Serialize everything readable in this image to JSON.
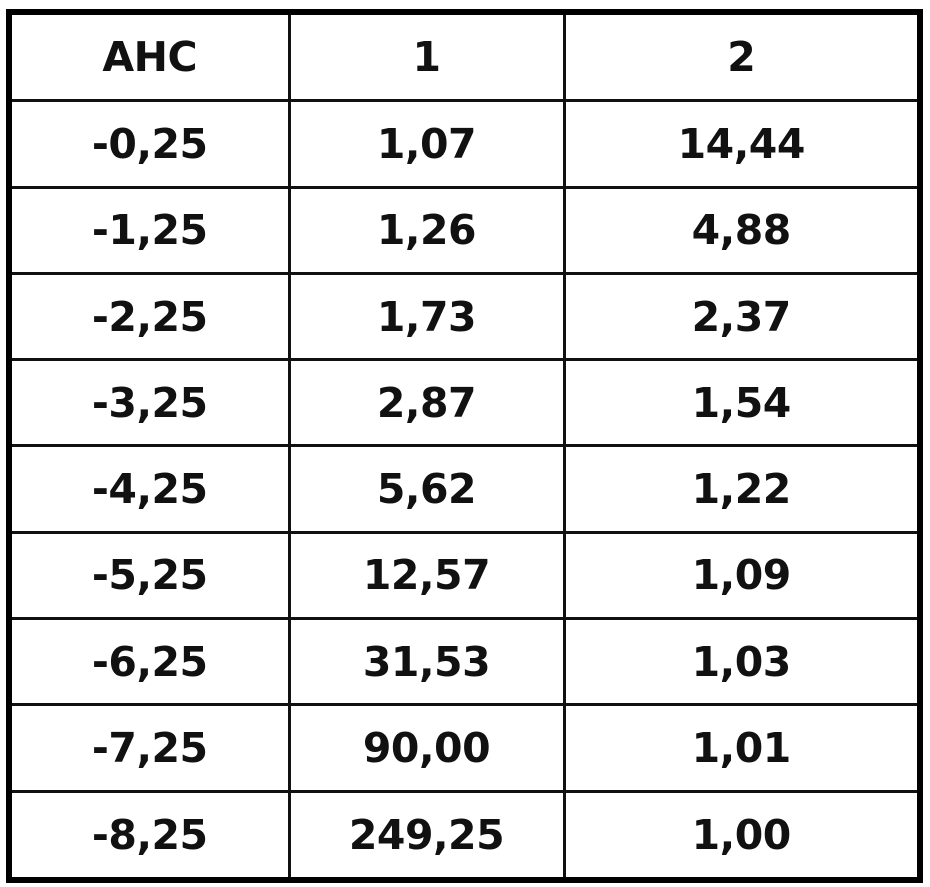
{
  "table": {
    "headers": [
      "AHC",
      "1",
      "2"
    ],
    "rows": [
      [
        "-0,25",
        "1,07",
        "14,44"
      ],
      [
        "-1,25",
        "1,26",
        "4,88"
      ],
      [
        "-2,25",
        "1,73",
        "2,37"
      ],
      [
        "-3,25",
        "2,87",
        "1,54"
      ],
      [
        "-4,25",
        "5,62",
        "1,22"
      ],
      [
        "-5,25",
        "12,57",
        "1,09"
      ],
      [
        "-6,25",
        "31,53",
        "1,03"
      ],
      [
        "-7,25",
        "90,00",
        "1,01"
      ],
      [
        "-8,25",
        "249,25",
        "1,00"
      ]
    ]
  }
}
